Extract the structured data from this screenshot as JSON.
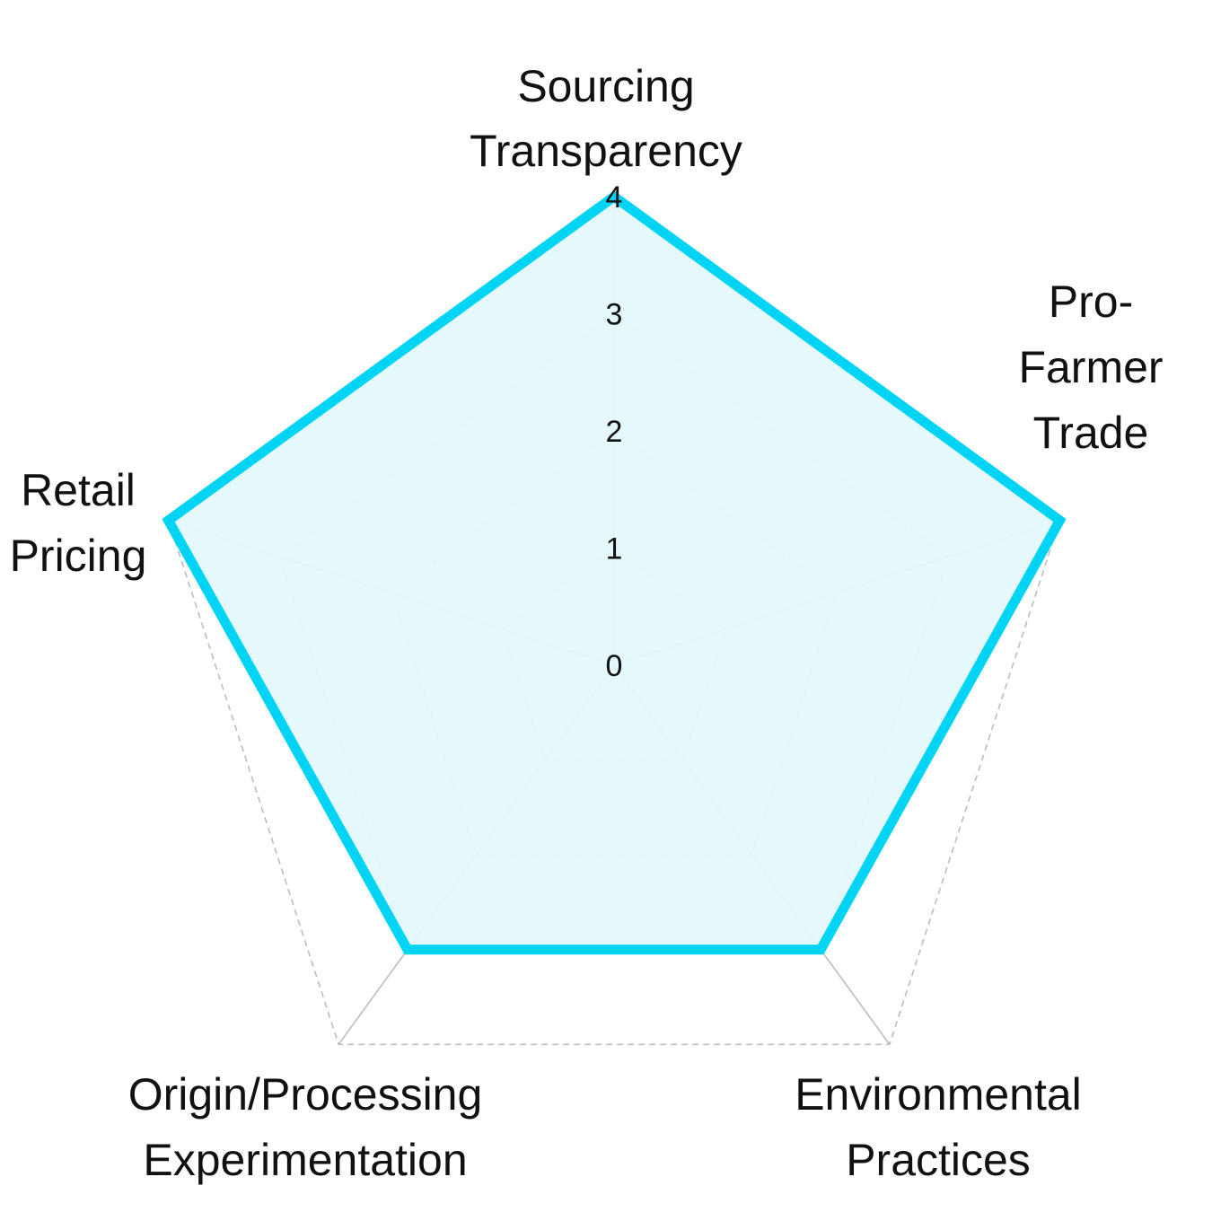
{
  "chart_data": {
    "type": "radar",
    "axes": [
      [
        "Sourcing",
        "Transparency"
      ],
      [
        "Pro-",
        "Farmer",
        "Trade"
      ],
      [
        "Environmental",
        "Practices"
      ],
      [
        "Origin/Processing",
        "Experimentation"
      ],
      [
        "Retail",
        "Pricing"
      ]
    ],
    "values": [
      4,
      4,
      3,
      3,
      4
    ],
    "rlim": [
      0,
      4
    ],
    "ticks": [
      "0",
      "1",
      "2",
      "3",
      "4"
    ],
    "grid": true,
    "colors": {
      "line": "#00d4f5",
      "fill": "#e4f9fd",
      "grid": "#bdbdbd",
      "spoke": "#bdbdbd"
    }
  }
}
